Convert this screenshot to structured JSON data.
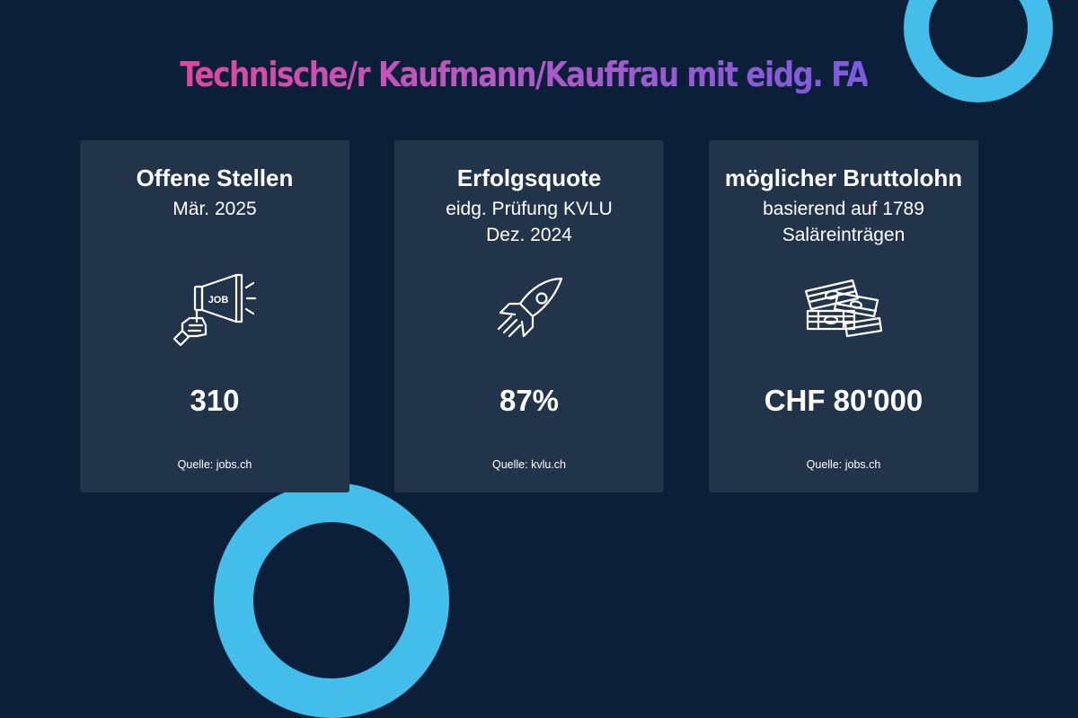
{
  "headline": "Technische/r Kaufmann/Kauffrau mit eidg. FA",
  "colors": {
    "background": "#0b1f38",
    "card": "#223449",
    "accent_ring": "#43bde9",
    "headline_gradient_start": "#e0479e",
    "headline_gradient_end": "#7b5be0"
  },
  "cards": [
    {
      "title": "Offene Stellen",
      "subtitle_lines": [
        "Mär. 2025"
      ],
      "icon": "megaphone-job-icon",
      "icon_text": "JOB",
      "value": "310",
      "source": "Quelle: jobs.ch"
    },
    {
      "title": "Erfolgsquote",
      "subtitle_lines": [
        "eidg. Prüfung KVLU",
        "Dez. 2024"
      ],
      "icon": "rocket-icon",
      "value": "87%",
      "source": "Quelle: kvlu.ch"
    },
    {
      "title": "möglicher Bruttolohn",
      "subtitle_lines": [
        "basierend auf 1789",
        "Saläreinträgen"
      ],
      "icon": "money-stack-icon",
      "value": "CHF 80'000",
      "source": "Quelle: jobs.ch"
    }
  ]
}
